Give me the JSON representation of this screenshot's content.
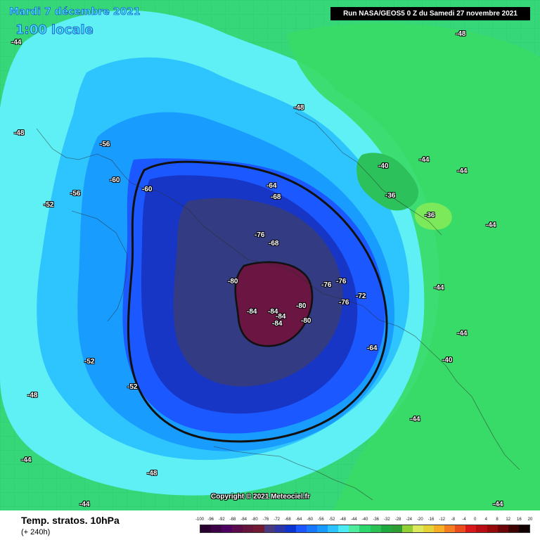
{
  "header": {
    "date": "Mardi 7 décembre 2021",
    "time": "1:00 locale",
    "run": "Run NASA/GEOS5 0 Z du Samedi 27 novembre 2021"
  },
  "footer": {
    "title": "Temp. stratos. 10hPa",
    "forecast": "(+ 240h)",
    "copyright": "Copyright © 2021 Meteociel.fr"
  },
  "legend": {
    "labels": [
      "-100",
      "-96",
      "-92",
      "-88",
      "-84",
      "-80",
      "-76",
      "-72",
      "-68",
      "-64",
      "-60",
      "-56",
      "-52",
      "-48",
      "-44",
      "-40",
      "-36",
      "-32",
      "-28",
      "-24",
      "-20",
      "-16",
      "-12",
      "-8",
      "-4",
      "0",
      "4",
      "8",
      "12",
      "16",
      "20"
    ],
    "colors": [
      "#2a0032",
      "#3b0046",
      "#4e0060",
      "#5c0b4a",
      "#67143a",
      "#721a34",
      "#493a80",
      "#2c36a8",
      "#0b34d0",
      "#1b56ff",
      "#1877ff",
      "#179aff",
      "#2cc2ff",
      "#4ceaf4",
      "#4feb9e",
      "#2cd76d",
      "#2ac157",
      "#1eaa3f",
      "#2f9d33",
      "#92cf37",
      "#dce95d",
      "#e5d236",
      "#f5ae25",
      "#f37d20",
      "#ea4c1d",
      "#d71818",
      "#b80d13",
      "#95080c",
      "#6c0306",
      "#3d0102",
      "#120000"
    ]
  },
  "map_values": {
    "value_labels": [
      "-44",
      "-48",
      "-52",
      "-56",
      "-60",
      "-64",
      "-68",
      "-72",
      "-76",
      "-80",
      "-84",
      "-36",
      "-40"
    ]
  }
}
